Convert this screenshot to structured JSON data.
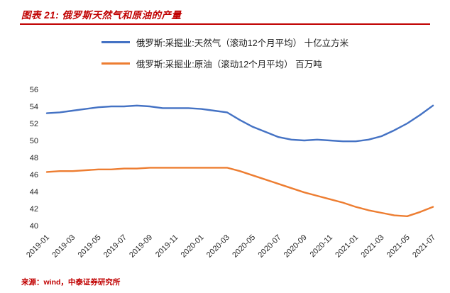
{
  "header": {
    "title": "图表 21: 俄罗斯天然气和原油的产量",
    "accent_color": "#C00000"
  },
  "footer": {
    "source": "来源：wind，中泰证券研究所"
  },
  "chart_data": {
    "type": "line",
    "title": "俄罗斯天然气和原油的产量",
    "x": [
      "2019-01",
      "2019-02",
      "2019-03",
      "2019-04",
      "2019-05",
      "2019-06",
      "2019-07",
      "2019-08",
      "2019-09",
      "2019-10",
      "2019-11",
      "2019-12",
      "2020-01",
      "2020-02",
      "2020-03",
      "2020-04",
      "2020-05",
      "2020-06",
      "2020-07",
      "2020-08",
      "2020-09",
      "2020-10",
      "2020-11",
      "2020-12",
      "2021-01",
      "2021-02",
      "2021-03",
      "2021-04",
      "2021-05",
      "2021-06",
      "2021-07"
    ],
    "x_tick_every": 2,
    "series": [
      {
        "name": "天然气",
        "legend_label": "俄罗斯:采掘业:天然气（滚动12个月平均） 十亿立方米",
        "color": "#4472C4",
        "values": [
          53.2,
          53.3,
          53.5,
          53.7,
          53.9,
          54.0,
          54.0,
          54.1,
          54.0,
          53.8,
          53.8,
          53.8,
          53.7,
          53.5,
          53.3,
          52.4,
          51.6,
          51.0,
          50.4,
          50.1,
          50.0,
          50.1,
          50.0,
          49.9,
          49.9,
          50.1,
          50.5,
          51.2,
          52.0,
          53.0,
          54.1
        ]
      },
      {
        "name": "原油",
        "legend_label": "俄罗斯:采掘业:原油（滚动12个月平均） 百万吨",
        "color": "#ED7D31",
        "values": [
          46.3,
          46.4,
          46.4,
          46.5,
          46.6,
          46.6,
          46.7,
          46.7,
          46.8,
          46.8,
          46.8,
          46.8,
          46.8,
          46.8,
          46.8,
          46.4,
          45.9,
          45.4,
          44.9,
          44.4,
          43.9,
          43.5,
          43.1,
          42.7,
          42.2,
          41.8,
          41.5,
          41.2,
          41.1,
          41.6,
          42.2
        ]
      }
    ],
    "ylim": [
      40,
      56
    ],
    "y_ticks": [
      40,
      42,
      44,
      46,
      48,
      50,
      52,
      54,
      56
    ],
    "grid": false,
    "legend_position": "top"
  }
}
